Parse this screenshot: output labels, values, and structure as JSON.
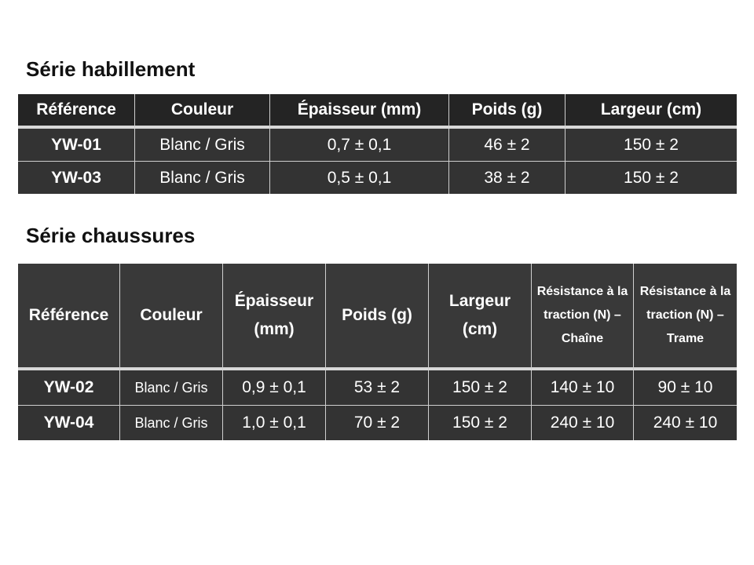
{
  "section1": {
    "title": "Série habillement",
    "headers": [
      "Référence",
      "Couleur",
      "Épaisseur (mm)",
      "Poids (g)",
      "Largeur (cm)"
    ],
    "rows": [
      [
        "YW-01",
        "Blanc / Gris",
        "0,7 ± 0,1",
        "46 ± 2",
        "150 ± 2"
      ],
      [
        "YW-03",
        "Blanc / Gris",
        "0,5 ± 0,1",
        "38 ± 2",
        "150 ± 2"
      ]
    ]
  },
  "section2": {
    "title": "Série chaussures",
    "headers": [
      "Référence",
      "Couleur",
      "Épaisseur (mm)",
      "Poids (g)",
      "Largeur (cm)",
      "Résistance à la traction (N) – Chaîne",
      "Résistance à la traction (N) – Trame"
    ],
    "rows": [
      [
        "YW-02",
        "Blanc / Gris",
        "0,9 ± 0,1",
        "53 ± 2",
        "150 ± 2",
        "140 ± 10",
        "90 ± 10"
      ],
      [
        "YW-04",
        "Blanc / Gris",
        "1,0 ± 0,1",
        "70 ± 2",
        "150 ± 2",
        "240 ± 10",
        "240 ± 10"
      ]
    ]
  }
}
